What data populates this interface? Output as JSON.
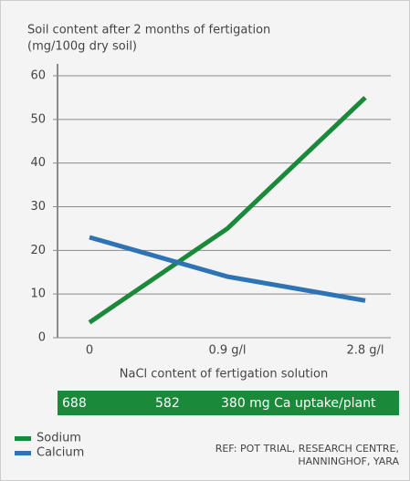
{
  "chart_data": {
    "type": "line",
    "title": "Soil content after 2 months of fertigation",
    "subtitle": "(mg/100g dry soil)",
    "x_label": "NaCl content of fertigation solution",
    "categories": [
      "0",
      "0.9 g/l",
      "2.8 g/l"
    ],
    "series": [
      {
        "name": "Sodium",
        "color": "#1a8a3a",
        "values": [
          3.5,
          25,
          55
        ]
      },
      {
        "name": "Calcium",
        "color": "#2e74b5",
        "values": [
          23,
          14,
          8.5
        ]
      }
    ],
    "ylim": [
      0,
      60
    ],
    "yticks": [
      0,
      10,
      20,
      30,
      40,
      50,
      60
    ],
    "grid": true,
    "band": [
      "688",
      "582",
      "380 mg Ca uptake/plant"
    ],
    "band_color": "#1a8a3a",
    "reference": [
      "REF: POT TRIAL, RESEARCH CENTRE,",
      "HANNINGHOF, YARA"
    ]
  }
}
